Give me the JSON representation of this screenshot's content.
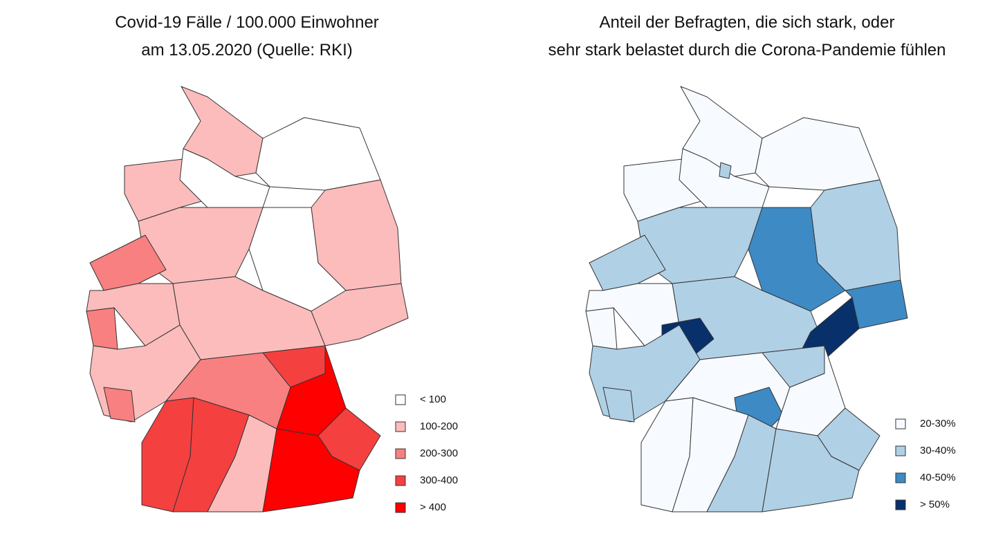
{
  "left": {
    "title": [
      "Covid-19 Fälle / 100.000 Einwohner",
      "am 13.05.2020 (Quelle: RKI)"
    ],
    "legend": [
      {
        "label": "< 100",
        "color": "#ffffff"
      },
      {
        "label": "100-200",
        "color": "#fcbcbc"
      },
      {
        "label": "200-300",
        "color": "#f98080"
      },
      {
        "label": "300-400",
        "color": "#f54040"
      },
      {
        "label": "> 400",
        "color": "#fe0000"
      }
    ]
  },
  "right": {
    "title": [
      "Anteil der Befragten, die sich stark, oder",
      "sehr stark belastet durch die Corona-Pandemie fühlen"
    ],
    "legend": [
      {
        "label": "20-30%",
        "color": "#f7fbff"
      },
      {
        "label": "30-40%",
        "color": "#b0d0e6"
      },
      {
        "label": "40-50%",
        "color": "#3e8ac4"
      },
      {
        "label": "> 50%",
        "color": "#08306b"
      }
    ]
  }
}
